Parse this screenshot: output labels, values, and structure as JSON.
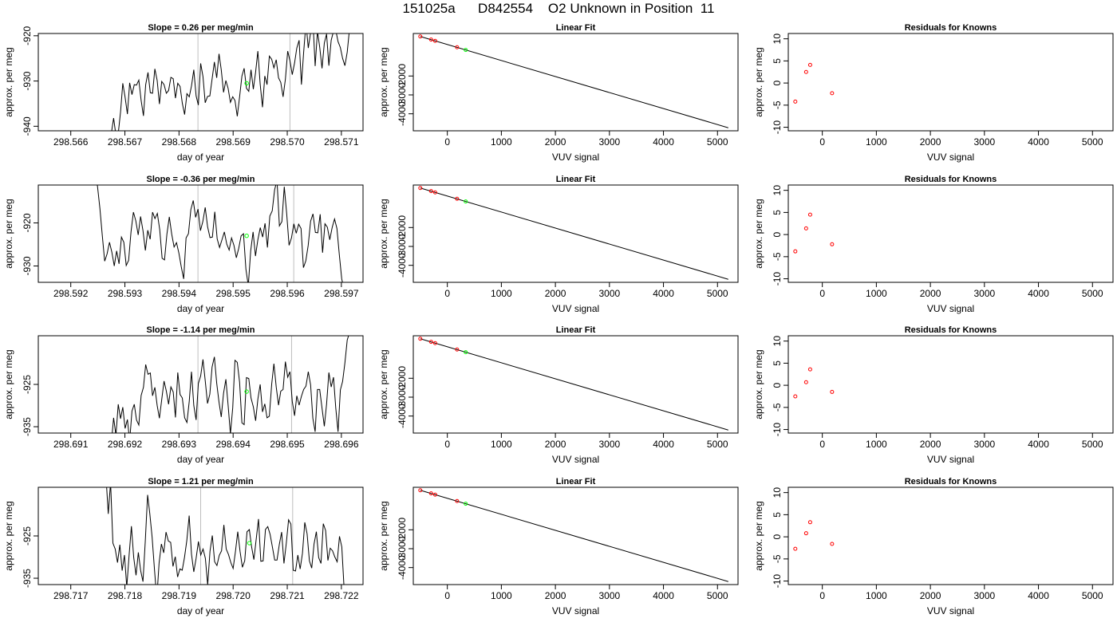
{
  "page_title": "151025a      D842554    O2 Unknown in Position  11",
  "colors": {
    "trace": "#000000",
    "cursor": "#bebebe",
    "unknown": "#00ff00",
    "known": "#ff0000"
  },
  "chart_data": [
    {
      "type": "line",
      "row": 1,
      "title": "Slope =  0.26  per meg/min",
      "xlabel": "day of year",
      "ylabel": "approx. per meg",
      "xlim": [
        298.5654,
        298.5714
      ],
      "ylim": [
        -941,
        -919.5
      ],
      "xticks": [
        "298.566",
        "298.567",
        "298.568",
        "298.569",
        "298.570",
        "298.571"
      ],
      "yticks": [
        "-940",
        "-930",
        "-920"
      ],
      "cursors": [
        298.56835,
        298.57005
      ],
      "unknown_point": {
        "x": 298.56925,
        "y": -930.5
      },
      "series": [
        {
          "x_start": 298.56675,
          "x_end": 298.57115,
          "y": [
            -941.5,
            -938.2,
            -942.0,
            -941.6,
            -936.8,
            -930.5,
            -933.6,
            -937.3,
            -930.4,
            -933.0,
            -930.8,
            -930.9,
            -929.8,
            -934.3,
            -937.7,
            -930.8,
            -928.1,
            -932.6,
            -932.7,
            -927.3,
            -929.9,
            -935.1,
            -930.1,
            -930.8,
            -932.7,
            -932.1,
            -929.2,
            -929.5,
            -933.8,
            -930.5,
            -931.2,
            -934.9,
            -937.4,
            -932.8,
            -933.5,
            -931.1,
            -927.5,
            -933.3,
            -935.3,
            -926.1,
            -929.0,
            -934.8,
            -933.4,
            -933.3,
            -929.6,
            -925.8,
            -929.3,
            -924.0,
            -927.5,
            -932.5,
            -929.9,
            -931.6,
            -934.7,
            -933.5,
            -934.3,
            -937.8,
            -933.5,
            -928.9,
            -927.2,
            -931.6,
            -932.3,
            -927.5,
            -931.8,
            -928.0,
            -923.4,
            -930.7,
            -935.8,
            -928.9,
            -930.8,
            -924.5,
            -925.2,
            -927.1,
            -925.3,
            -929.3,
            -930.3,
            -933.5,
            -929.6,
            -923.4,
            -925.5,
            -928.6,
            -926.0,
            -922.7,
            -921.0,
            -930.8,
            -923.6,
            -917.2,
            -922.7,
            -919.3,
            -916.2,
            -926.7,
            -919.0,
            -922.5,
            -927.2,
            -921.6,
            -919.6,
            -926.6,
            -921.0,
            -919.0,
            -918.7,
            -921.3,
            -922.6,
            -925.0,
            -926.6,
            -923.6,
            -918.6
          ]
        }
      ]
    },
    {
      "type": "scatter",
      "row": 1,
      "title": "Linear Fit",
      "xlabel": "VUV signal",
      "ylabel": "approx. per meg",
      "xlim": [
        -630,
        5380
      ],
      "ylim": [
        -4900,
        250
      ],
      "xticks": [
        "0",
        "1000",
        "2000",
        "3000",
        "4000",
        "5000"
      ],
      "yticks": [
        "-4000",
        "-3000",
        "-2000"
      ],
      "fit_line": {
        "x": [
          -500,
          5200
        ],
        "y": [
          90,
          -4740
        ]
      },
      "knowns": [
        {
          "x": -500,
          "y": 90
        },
        {
          "x": -300,
          "y": -70
        },
        {
          "x": -225,
          "y": -140
        },
        {
          "x": 180,
          "y": -480
        }
      ],
      "unknown": {
        "x": 340,
        "y": -620
      }
    },
    {
      "type": "scatter",
      "row": 1,
      "title": "Residuals for Knowns",
      "xlabel": "VUV signal",
      "ylabel": "approx. per meg",
      "xlim": [
        -630,
        5380
      ],
      "ylim": [
        -10.8,
        11.2
      ],
      "xticks": [
        "0",
        "1000",
        "2000",
        "3000",
        "4000",
        "5000"
      ],
      "yticks": [
        "-10",
        "-5",
        "0",
        "5",
        "10"
      ],
      "points": [
        {
          "x": -500,
          "y": -4.2
        },
        {
          "x": -300,
          "y": 2.5
        },
        {
          "x": -225,
          "y": 4.1
        },
        {
          "x": 180,
          "y": -2.3
        }
      ]
    },
    {
      "type": "line",
      "row": 2,
      "title": "Slope =  -0.36  per meg/min",
      "xlabel": "day of year",
      "ylabel": "approx. per meg",
      "xlim": [
        298.5914,
        298.5974
      ],
      "ylim": [
        -933.8,
        -911.2
      ],
      "xticks": [
        "298.592",
        "298.593",
        "298.594",
        "298.595",
        "298.596",
        "298.597"
      ],
      "yticks": [
        "-930",
        "-920"
      ],
      "cursors": [
        298.59435,
        298.59612
      ],
      "unknown_point": {
        "x": 298.59525,
        "y": -923.0
      },
      "series": [
        {
          "x_start": 298.59245,
          "x_end": 298.59705,
          "y": [
            -909.0,
            -911.5,
            -916.6,
            -922.9,
            -928.9,
            -927.2,
            -924.5,
            -926.8,
            -930.0,
            -926.5,
            -929.5,
            -923.3,
            -924.5,
            -929.9,
            -928.7,
            -922.1,
            -917.5,
            -919.5,
            -922.8,
            -918.5,
            -921.8,
            -926.4,
            -921.7,
            -923.8,
            -917.5,
            -919.0,
            -917.8,
            -921.6,
            -928.2,
            -928.6,
            -922.6,
            -918.6,
            -922.6,
            -925.6,
            -924.6,
            -927.0,
            -930.2,
            -933.0,
            -923.5,
            -922.5,
            -916.9,
            -914.8,
            -918.7,
            -916.8,
            -921.8,
            -919.7,
            -916.4,
            -920.9,
            -923.4,
            -923.3,
            -917.4,
            -923.7,
            -925.7,
            -923.9,
            -922.1,
            -924.9,
            -926.3,
            -923.5,
            -925.2,
            -928.1,
            -925.9,
            -923.0,
            -922.5,
            -930.7,
            -934.6,
            -926.5,
            -922.1,
            -927.7,
            -923.9,
            -921.1,
            -923.3,
            -920.1,
            -925.7,
            -918.4,
            -917.2,
            -912.3,
            -910.1,
            -920.7,
            -919.7,
            -911.6,
            -917.8,
            -925.2,
            -923.5,
            -920.2,
            -922.4,
            -920.3,
            -921.3,
            -930.4,
            -928.8,
            -925.2,
            -919.6,
            -917.9,
            -922.2,
            -922.3,
            -918.0,
            -926.9,
            -920.2,
            -921.0,
            -923.9,
            -921.1,
            -919.1,
            -921.3,
            -927.4,
            -933.0,
            -935.6
          ]
        }
      ]
    },
    {
      "type": "scatter",
      "row": 2,
      "title": "Linear Fit",
      "xlabel": "VUV signal",
      "ylabel": "approx. per meg",
      "xlim": [
        -630,
        5380
      ],
      "ylim": [
        -4900,
        250
      ],
      "xticks": [
        "0",
        "1000",
        "2000",
        "3000",
        "4000",
        "5000"
      ],
      "yticks": [
        "-4000",
        "-3000",
        "-2000"
      ],
      "fit_line": {
        "x": [
          -500,
          5200
        ],
        "y": [
          90,
          -4740
        ]
      },
      "knowns": [
        {
          "x": -500,
          "y": 90
        },
        {
          "x": -300,
          "y": -70
        },
        {
          "x": -225,
          "y": -140
        },
        {
          "x": 180,
          "y": -480
        }
      ],
      "unknown": {
        "x": 340,
        "y": -620
      }
    },
    {
      "type": "scatter",
      "row": 2,
      "title": "Residuals for Knowns",
      "xlabel": "VUV signal",
      "ylabel": "approx. per meg",
      "xlim": [
        -630,
        5380
      ],
      "ylim": [
        -10.8,
        11.2
      ],
      "xticks": [
        "0",
        "1000",
        "2000",
        "3000",
        "4000",
        "5000"
      ],
      "yticks": [
        "-10",
        "-5",
        "0",
        "5",
        "10"
      ],
      "points": [
        {
          "x": -500,
          "y": -3.8
        },
        {
          "x": -300,
          "y": 1.4
        },
        {
          "x": -225,
          "y": 4.5
        },
        {
          "x": 180,
          "y": -2.2
        }
      ]
    },
    {
      "type": "line",
      "row": 3,
      "title": "Slope =  -1.14  per meg/min",
      "xlabel": "day of year",
      "ylabel": "approx. per meg",
      "xlim": [
        298.6904,
        298.6964
      ],
      "ylim": [
        -936.5,
        -913.5
      ],
      "xticks": [
        "298.691",
        "298.692",
        "298.693",
        "298.694",
        "298.695",
        "298.696"
      ],
      "yticks": [
        "-935",
        "-925"
      ],
      "cursors": [
        298.69335,
        298.69508
      ],
      "unknown_point": {
        "x": 298.69425,
        "y": -926.7
      },
      "series": [
        {
          "x_start": 298.69175,
          "x_end": 298.69615,
          "y": [
            -938.8,
            -932.9,
            -937.0,
            -929.7,
            -933.1,
            -930.4,
            -935.4,
            -933.3,
            -938.4,
            -931.3,
            -929.7,
            -933.4,
            -934.6,
            -927.6,
            -925.7,
            -920.3,
            -922.6,
            -922.3,
            -927.7,
            -925.7,
            -930.0,
            -933.0,
            -928.6,
            -924.2,
            -926.6,
            -929.7,
            -925.6,
            -926.8,
            -932.8,
            -922.2,
            -927.4,
            -928.2,
            -932.9,
            -934.0,
            -929.0,
            -922.0,
            -930.0,
            -933.4,
            -924.8,
            -923.0,
            -919.1,
            -924.1,
            -929.5,
            -927.3,
            -920.9,
            -918.5,
            -924.7,
            -929.2,
            -932.7,
            -927.1,
            -923.8,
            -929.9,
            -936.7,
            -930.5,
            -919.3,
            -919.8,
            -924.5,
            -934.1,
            -934.5,
            -923.4,
            -923.6,
            -928.2,
            -930.3,
            -933.6,
            -928.5,
            -925.0,
            -931.5,
            -929.6,
            -932.9,
            -932.5,
            -925.0,
            -920.1,
            -925.6,
            -929.9,
            -926.6,
            -926.2,
            -919.6,
            -923.3,
            -922.0,
            -929.0,
            -932.4,
            -927.7,
            -929.9,
            -927.8,
            -926.2,
            -925.4,
            -922.0,
            -925.1,
            -933.0,
            -936.2,
            -926.2,
            -926.2,
            -930.6,
            -934.9,
            -929.7,
            -922.2,
            -925.6,
            -923.3,
            -930.5,
            -936.2,
            -926.3,
            -924.3,
            -919.9,
            -914.5,
            -912.8
          ]
        }
      ]
    },
    {
      "type": "scatter",
      "row": 3,
      "title": "Linear Fit",
      "xlabel": "VUV signal",
      "ylabel": "approx. per meg",
      "xlim": [
        -630,
        5380
      ],
      "ylim": [
        -4900,
        250
      ],
      "xticks": [
        "0",
        "1000",
        "2000",
        "3000",
        "4000",
        "5000"
      ],
      "yticks": [
        "-4000",
        "-3000",
        "-2000"
      ],
      "fit_line": {
        "x": [
          -500,
          5200
        ],
        "y": [
          90,
          -4740
        ]
      },
      "knowns": [
        {
          "x": -500,
          "y": 90
        },
        {
          "x": -300,
          "y": -70
        },
        {
          "x": -225,
          "y": -140
        },
        {
          "x": 180,
          "y": -480
        }
      ],
      "unknown": {
        "x": 340,
        "y": -620
      }
    },
    {
      "type": "scatter",
      "row": 3,
      "title": "Residuals for Knowns",
      "xlabel": "VUV signal",
      "ylabel": "approx. per meg",
      "xlim": [
        -630,
        5380
      ],
      "ylim": [
        -10.8,
        11.2
      ],
      "xticks": [
        "0",
        "1000",
        "2000",
        "3000",
        "4000",
        "5000"
      ],
      "yticks": [
        "-10",
        "-5",
        "0",
        "5",
        "10"
      ],
      "points": [
        {
          "x": -500,
          "y": -2.5
        },
        {
          "x": -300,
          "y": 0.7
        },
        {
          "x": -225,
          "y": 3.6
        },
        {
          "x": 180,
          "y": -1.5
        }
      ]
    },
    {
      "type": "line",
      "row": 4,
      "title": "Slope =  1.21  per meg/min",
      "xlabel": "day of year",
      "ylabel": "approx. per meg",
      "xlim": [
        298.7164,
        298.7224
      ],
      "ylim": [
        -936.5,
        -913.5
      ],
      "xticks": [
        "298.717",
        "298.718",
        "298.719",
        "298.720",
        "298.721",
        "298.722"
      ],
      "yticks": [
        "-935",
        "-925"
      ],
      "cursors": [
        298.7194,
        298.7211
      ],
      "unknown_point": {
        "x": 298.7203,
        "y": -926.7
      },
      "series": [
        {
          "x_start": 298.71765,
          "x_end": 298.72205,
          "y": [
            -910.8,
            -919.8,
            -912.3,
            -926.7,
            -928.1,
            -931.3,
            -927.1,
            -933.2,
            -929.5,
            -937.1,
            -929.6,
            -922.7,
            -930.1,
            -934.3,
            -928.9,
            -933.2,
            -935.8,
            -926.2,
            -915.3,
            -919.8,
            -925.4,
            -932.9,
            -939.9,
            -931.4,
            -926.9,
            -929.0,
            -924.1,
            -926.2,
            -926.5,
            -932.2,
            -929.9,
            -934.7,
            -932.8,
            -933.1,
            -930.0,
            -926.0,
            -920.2,
            -929.3,
            -933.5,
            -930.3,
            -926.3,
            -929.5,
            -928.1,
            -930.3,
            -936.6,
            -928.6,
            -924.9,
            -931.1,
            -932.0,
            -929.6,
            -928.5,
            -922.4,
            -928.1,
            -929.4,
            -931.3,
            -932.7,
            -928.7,
            -924.0,
            -928.7,
            -932.4,
            -930.9,
            -924.0,
            -923.5,
            -927.5,
            -930.6,
            -925.8,
            -921.0,
            -931.0,
            -930.9,
            -923.5,
            -922.8,
            -924.6,
            -927.6,
            -930.7,
            -930.7,
            -927.0,
            -924.1,
            -931.5,
            -926.8,
            -921.2,
            -922.2,
            -933.1,
            -933.3,
            -929.5,
            -932.8,
            -929.1,
            -921.8,
            -924.5,
            -930.9,
            -932.6,
            -926.9,
            -924.0,
            -930.1,
            -931.5,
            -922.1,
            -923.7,
            -930.8,
            -927.9,
            -928.5,
            -930.0,
            -931.1,
            -925.1,
            -927.6,
            -937.5
          ]
        }
      ]
    },
    {
      "type": "scatter",
      "row": 4,
      "title": "Linear Fit",
      "xlabel": "VUV signal",
      "ylabel": "approx. per meg",
      "xlim": [
        -630,
        5380
      ],
      "ylim": [
        -4900,
        250
      ],
      "xticks": [
        "0",
        "1000",
        "2000",
        "3000",
        "4000",
        "5000"
      ],
      "yticks": [
        "-4000",
        "-3000",
        "-2000"
      ],
      "fit_line": {
        "x": [
          -500,
          5200
        ],
        "y": [
          90,
          -4740
        ]
      },
      "knowns": [
        {
          "x": -500,
          "y": 90
        },
        {
          "x": -300,
          "y": -70
        },
        {
          "x": -225,
          "y": -140
        },
        {
          "x": 180,
          "y": -480
        }
      ],
      "unknown": {
        "x": 340,
        "y": -620
      }
    },
    {
      "type": "scatter",
      "row": 4,
      "title": "Residuals for Knowns",
      "xlabel": "VUV signal",
      "ylabel": "approx. per meg",
      "xlim": [
        -630,
        5380
      ],
      "ylim": [
        -10.8,
        11.2
      ],
      "xticks": [
        "0",
        "1000",
        "2000",
        "3000",
        "4000",
        "5000"
      ],
      "yticks": [
        "-10",
        "-5",
        "0",
        "5",
        "10"
      ],
      "points": [
        {
          "x": -500,
          "y": -2.7
        },
        {
          "x": -300,
          "y": 0.8
        },
        {
          "x": -225,
          "y": 3.3
        },
        {
          "x": 180,
          "y": -1.6
        }
      ]
    }
  ]
}
